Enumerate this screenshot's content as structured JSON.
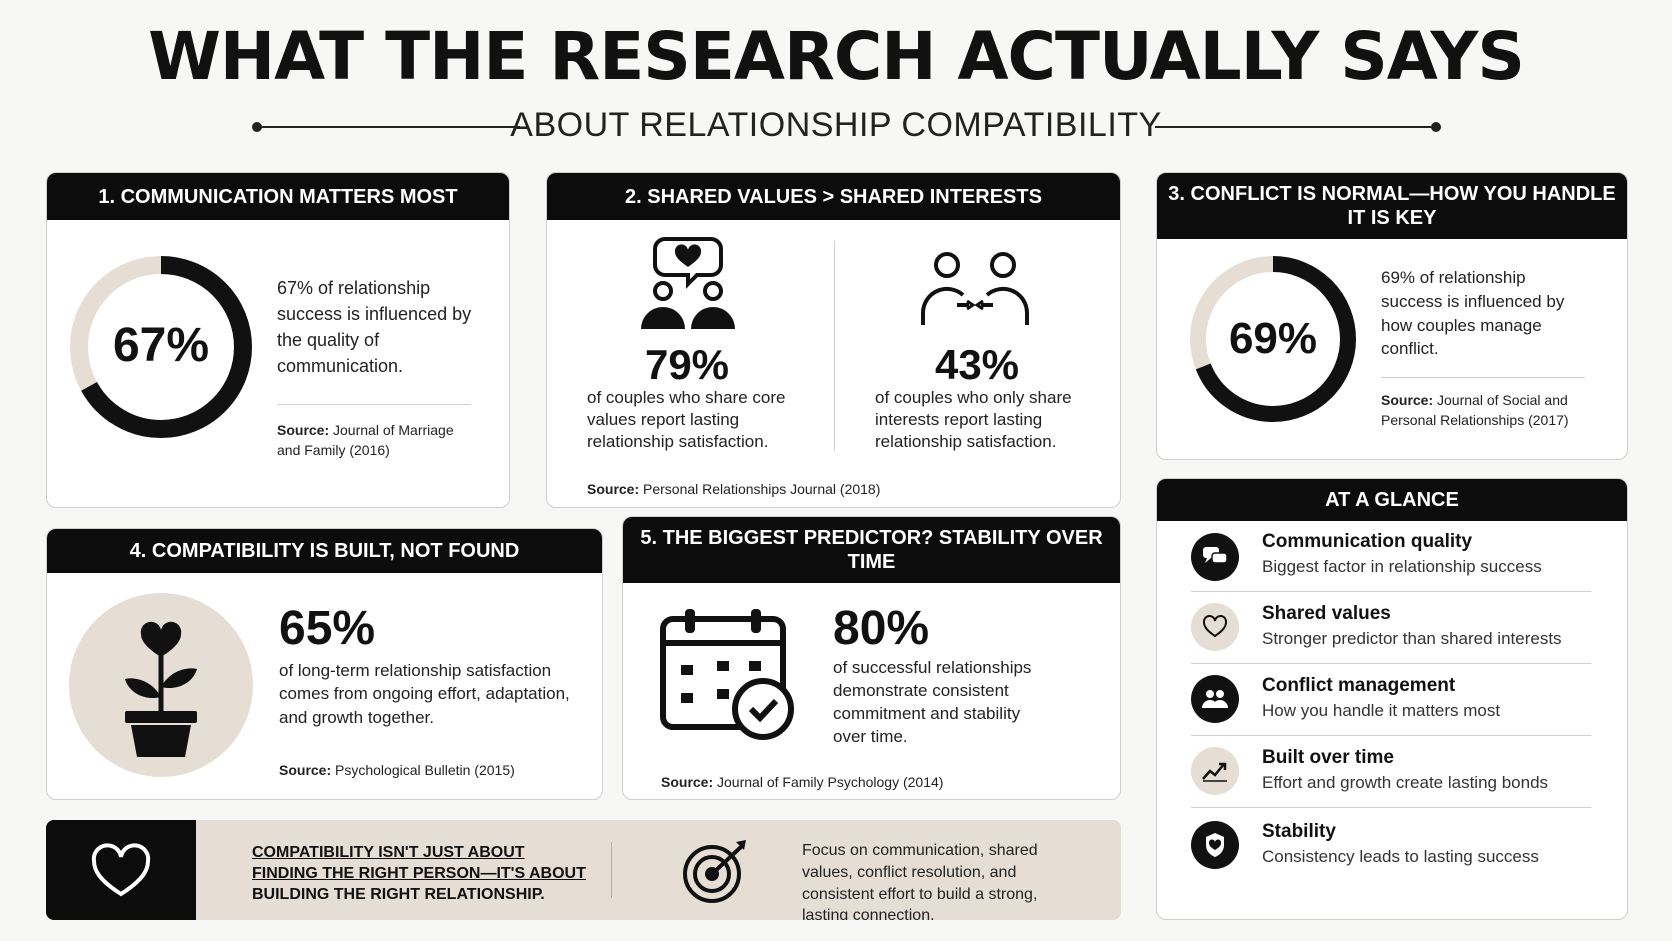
{
  "header": {
    "title": "WHAT THE RESEARCH ACTUALLY SAYS",
    "subtitle": "ABOUT RELATIONSHIP COMPATIBILITY"
  },
  "card1": {
    "heading": "1. COMMUNICATION MATTERS MOST",
    "stat": "67%",
    "stat_fraction": 0.67,
    "text": "67% of relationship success is influenced by the quality of communication.",
    "source_label": "Source:",
    "source": "Journal of Marriage and Family (2016)"
  },
  "card2": {
    "heading": "2. SHARED VALUES > SHARED INTERESTS",
    "left_stat": "79%",
    "left_text": "of couples who share core values report lasting relationship satisfaction.",
    "right_stat": "43%",
    "right_text": "of couples who only share interests report lasting relationship satisfaction.",
    "source_label": "Source:",
    "source": "Personal Relationships Journal (2018)"
  },
  "card3": {
    "heading": "3. CONFLICT IS NORMAL—HOW YOU HANDLE IT IS KEY",
    "stat": "69%",
    "stat_fraction": 0.69,
    "text": "69% of relationship success is influenced by how couples manage conflict.",
    "source_label": "Source:",
    "source": "Journal of Social and Personal Relationships (2017)"
  },
  "card4": {
    "heading": "4. COMPATIBILITY IS BUILT, NOT FOUND",
    "stat": "65%",
    "text": "of long-term relationship satisfaction comes from ongoing effort, adaptation, and growth together.",
    "source_label": "Source:",
    "source": "Psychological Bulletin (2015)"
  },
  "card5": {
    "heading": "5. THE BIGGEST PREDICTOR? STABILITY OVER TIME",
    "stat": "80%",
    "text": "of successful relationships demonstrate consistent commitment and stability over time.",
    "source_label": "Source:",
    "source": "Journal of Family Psychology (2014)"
  },
  "glance": {
    "heading": "AT A GLANCE",
    "items": [
      {
        "title": "Communication quality",
        "desc": "Biggest factor in relationship success",
        "icon": "chat-bubbles-icon"
      },
      {
        "title": "Shared values",
        "desc": "Stronger predictor than shared interests",
        "icon": "heart-icon"
      },
      {
        "title": "Conflict management",
        "desc": "How you handle it matters most",
        "icon": "people-icon"
      },
      {
        "title": "Built over time",
        "desc": "Effort and growth create lasting bonds",
        "icon": "growth-chart-icon"
      },
      {
        "title": "Stability",
        "desc": "Consistency leads to lasting success",
        "icon": "shield-heart-icon"
      }
    ]
  },
  "banner": {
    "line1": "COMPATIBILITY ISN'T JUST ABOUT",
    "line2": "FINDING THE RIGHT PERSON—IT'S ABOUT",
    "line3": "BUILDING THE RIGHT RELATIONSHIP.",
    "right_text": "Focus on communication, shared values, conflict resolution, and consistent effort to build a strong, lasting connection."
  },
  "colors": {
    "accent_beige": "#e6ddd5",
    "dark": "#0c0c0c"
  }
}
